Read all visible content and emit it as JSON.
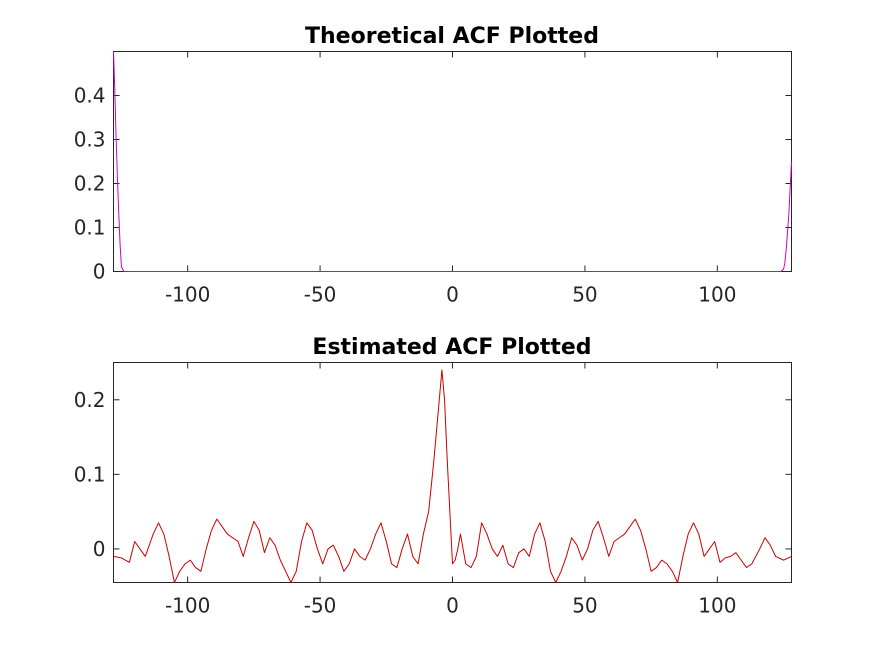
{
  "chart_data": [
    {
      "type": "line",
      "title": "Theoretical ACF Plotted",
      "xlabel": "",
      "ylabel": "",
      "xlim": [
        -128,
        128
      ],
      "ylim": [
        0,
        0.5
      ],
      "xticks": [
        -100,
        -50,
        0,
        50,
        100
      ],
      "xtick_labels": [
        "-100",
        "-50",
        "0",
        "50",
        "100"
      ],
      "yticks": [
        0,
        0.1,
        0.2,
        0.3,
        0.4
      ],
      "ytick_labels": [
        "0",
        "0.1",
        "0.2",
        "0.3",
        "0.4"
      ],
      "grid": false,
      "line_color": "#cc00cc",
      "series": [
        {
          "x": [
            -128,
            -127.5,
            -127,
            -126.5,
            -126,
            -125.5,
            -125,
            -124,
            124,
            125,
            125.5,
            126,
            126.5,
            127,
            127.5,
            128
          ],
          "y": [
            0.5,
            0.41,
            0.3,
            0.21,
            0.13,
            0.06,
            0.01,
            0,
            0,
            0.005,
            0.02,
            0.05,
            0.09,
            0.13,
            0.19,
            0.25
          ]
        }
      ]
    },
    {
      "type": "line",
      "title": "Estimated ACF Plotted",
      "xlabel": "",
      "ylabel": "",
      "xlim": [
        -128,
        128
      ],
      "ylim": [
        -0.045,
        0.25
      ],
      "xticks": [
        -100,
        -50,
        0,
        50,
        100
      ],
      "xtick_labels": [
        "-100",
        "-50",
        "0",
        "50",
        "100"
      ],
      "yticks": [
        0,
        0.1,
        0.2
      ],
      "ytick_labels": [
        "0",
        "0.1",
        "0.2"
      ],
      "grid": false,
      "line_color": "#cc0000",
      "series": [
        {
          "x": [
            -128,
            -125,
            -122,
            -120,
            -118,
            -116,
            -113,
            -111,
            -109,
            -107,
            -105,
            -103,
            -101,
            -99,
            -97,
            -95,
            -93,
            -91,
            -89,
            -87,
            -85,
            -83,
            -81,
            -79,
            -77,
            -75,
            -73,
            -71,
            -69,
            -67,
            -65,
            -63,
            -61,
            -59,
            -57,
            -55,
            -53,
            -51,
            -49,
            -47,
            -45,
            -43,
            -41,
            -39,
            -37,
            -35,
            -33,
            -31,
            -29,
            -27,
            -25,
            -23,
            -21,
            -19,
            -17,
            -15,
            -13,
            -11,
            -9,
            -7,
            -5,
            -4,
            -3,
            -2,
            -1,
            0,
            1,
            2,
            3,
            4,
            5,
            7,
            9,
            11,
            13,
            15,
            17,
            19,
            21,
            23,
            25,
            27,
            29,
            31,
            33,
            35,
            37,
            39,
            41,
            43,
            45,
            47,
            49,
            51,
            53,
            55,
            57,
            59,
            61,
            63,
            65,
            67,
            69,
            71,
            73,
            75,
            77,
            79,
            81,
            83,
            85,
            87,
            89,
            91,
            93,
            95,
            97,
            99,
            101,
            103,
            105,
            107,
            109,
            111,
            113,
            116,
            118,
            120,
            122,
            125,
            128
          ],
          "y": [
            -0.01,
            -0.012,
            -0.018,
            0.01,
            0.0,
            -0.01,
            0.02,
            0.035,
            0.02,
            -0.01,
            -0.045,
            -0.03,
            -0.02,
            -0.015,
            -0.025,
            -0.03,
            0.0,
            0.025,
            0.04,
            0.03,
            0.02,
            0.015,
            0.01,
            -0.01,
            0.015,
            0.037,
            0.025,
            -0.005,
            0.015,
            0.005,
            -0.015,
            -0.03,
            -0.045,
            -0.03,
            0.01,
            0.035,
            0.025,
            0.0,
            -0.02,
            0.0,
            0.005,
            -0.01,
            -0.03,
            -0.02,
            0.0,
            -0.01,
            -0.015,
            0.0,
            0.02,
            0.035,
            0.01,
            -0.02,
            -0.025,
            0.0,
            0.02,
            -0.01,
            -0.02,
            0.02,
            0.05,
            0.12,
            0.2,
            0.24,
            0.2,
            0.12,
            0.05,
            -0.02,
            -0.015,
            0.0,
            0.02,
            0.0,
            -0.02,
            -0.025,
            -0.01,
            0.035,
            0.02,
            0.0,
            -0.01,
            0.005,
            -0.02,
            -0.025,
            -0.005,
            0.0,
            -0.01,
            0.02,
            0.035,
            0.01,
            -0.03,
            -0.045,
            -0.03,
            -0.01,
            0.015,
            0.005,
            -0.015,
            0.0,
            0.025,
            0.037,
            0.015,
            -0.01,
            0.01,
            0.015,
            0.02,
            0.03,
            0.04,
            0.025,
            0.0,
            -0.03,
            -0.025,
            -0.015,
            -0.02,
            -0.03,
            -0.045,
            -0.01,
            0.02,
            0.035,
            0.02,
            -0.01,
            0.0,
            0.01,
            -0.018,
            -0.012,
            -0.01,
            -0.005,
            -0.015,
            -0.025,
            -0.02,
            0.0,
            0.015,
            0.005,
            -0.01,
            -0.015,
            -0.01
          ]
        }
      ]
    }
  ]
}
